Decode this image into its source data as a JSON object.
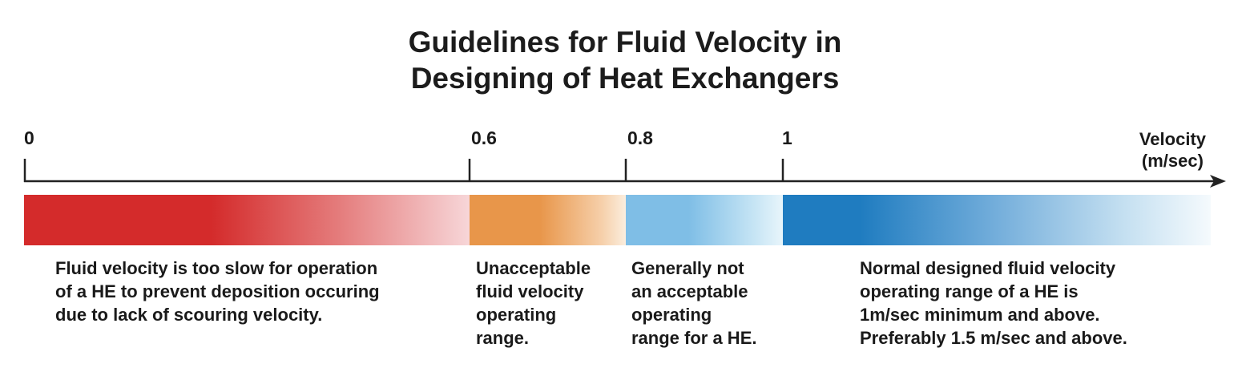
{
  "title": {
    "line1": "Guidelines for Fluid Velocity in",
    "line2": "Designing of Heat Exchangers"
  },
  "axis": {
    "tick_labels": [
      "0",
      "0.6",
      "0.8",
      "1"
    ],
    "unit_line1": "Velocity",
    "unit_line2": "(m/sec)"
  },
  "ranges": [
    {
      "name": "too-slow",
      "from": 0,
      "to": 0.6,
      "color": "#d42b2b",
      "description": [
        "Fluid velocity is too slow  for operation",
        "of a HE to prevent deposition occuring",
        "due to lack of scouring velocity."
      ]
    },
    {
      "name": "unacceptable",
      "from": 0.6,
      "to": 0.8,
      "color": "#e8964a",
      "description": [
        "Unacceptable",
        "fluid velocity",
        "operating",
        "range."
      ]
    },
    {
      "name": "generally-not-acceptable",
      "from": 0.8,
      "to": 1,
      "color": "#7fbee6",
      "description": [
        "Generally not",
        "an acceptable",
        "operating",
        "range for a HE."
      ]
    },
    {
      "name": "normal",
      "from": 1,
      "to": null,
      "color": "#1f7cc0",
      "description": [
        "Normal designed fluid velocity",
        "operating range of a HE is",
        "1m/sec minimum and above.",
        "Preferably 1.5 m/sec and above."
      ]
    }
  ]
}
